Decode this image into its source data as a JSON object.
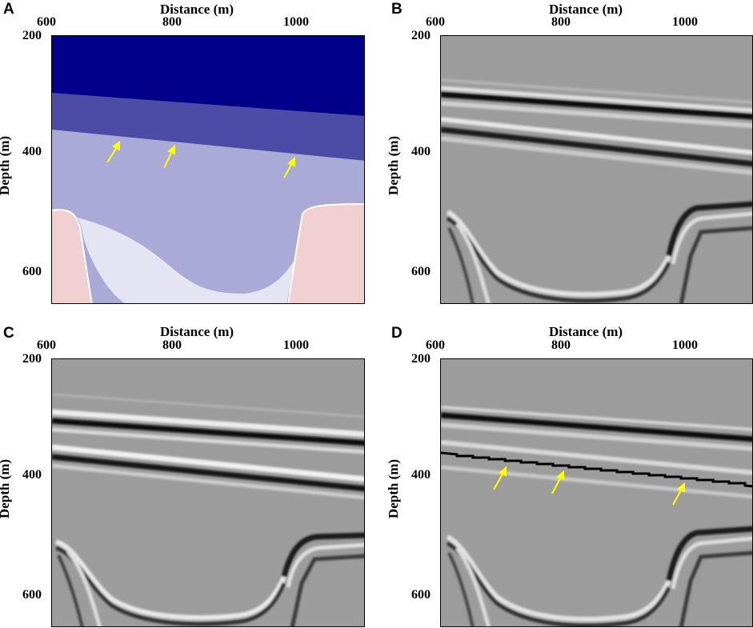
{
  "panels": [
    {
      "letter": "A",
      "kind": "velocity_model"
    },
    {
      "letter": "B",
      "kind": "seismic_image"
    },
    {
      "letter": "C",
      "kind": "seismic_image"
    },
    {
      "letter": "D",
      "kind": "seismic_image_annotated"
    }
  ],
  "axes": {
    "xlabel": "Distance (m)",
    "ylabel": "Depth (m)",
    "xticks": [
      "600",
      "800",
      "1000"
    ],
    "yticks": [
      "200",
      "400",
      "600"
    ],
    "xlim": [
      600,
      1090
    ],
    "ylim": [
      200,
      650
    ]
  },
  "colors": {
    "layer1": "#00008b",
    "layer2": "#4c4ca6",
    "layer3": "#aaaad6",
    "infill": "#e4e4f2",
    "basement": "#f0d0d0",
    "arrow": "#ffff00",
    "seismic_bg": "#9c9c9c"
  },
  "arrow_note": "yellow arrows mark the boundary between layer 2 and layer 3"
}
